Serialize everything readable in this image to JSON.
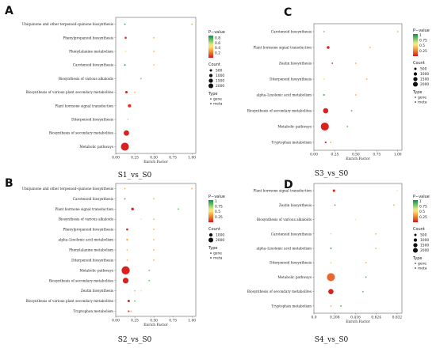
{
  "chart_data": [
    {
      "panel": "A",
      "caption": "S1_vs_S0",
      "type": "scatter",
      "xlabel": "Enrich Factor",
      "xlim": [
        0,
        1.05
      ],
      "xticks": [
        0.0,
        0.25,
        0.5,
        0.75,
        1.0
      ],
      "xtick_labels": [
        "0.00",
        "0.25",
        "0.50",
        "0.75",
        "1.00"
      ],
      "categories": [
        "Ubiquinone and other terpenoid–quinone biosynthesis",
        "Phenylpropanoid biosynthesis",
        "Phenylalanine metabolism",
        "Carotenoid biosynthesis",
        "Biosynthesis of various alkaloids",
        "Biosynthesis of various plant secondary metabolites",
        "Plant hormone signal transduction",
        "Diterpenoid biosynthesis",
        "Biosynthesis of secondary metabolites",
        "Metabolic pathways"
      ],
      "points": [
        {
          "cat": 0,
          "x": 0.12,
          "count": 50,
          "p": 0.85,
          "type": "gene"
        },
        {
          "cat": 0,
          "x": 1.0,
          "count": 30,
          "p": 0.65,
          "type": "meta"
        },
        {
          "cat": 1,
          "x": 0.13,
          "count": 150,
          "p": 0.05,
          "type": "gene"
        },
        {
          "cat": 1,
          "x": 0.5,
          "count": 30,
          "p": 0.35,
          "type": "meta"
        },
        {
          "cat": 2,
          "x": 0.13,
          "count": 60,
          "p": 0.45,
          "type": "gene"
        },
        {
          "cat": 2,
          "x": 0.5,
          "count": 30,
          "p": 0.35,
          "type": "meta"
        },
        {
          "cat": 3,
          "x": 0.12,
          "count": 80,
          "p": 0.85,
          "type": "gene"
        },
        {
          "cat": 3,
          "x": 0.5,
          "count": 30,
          "p": 0.4,
          "type": "meta"
        },
        {
          "cat": 4,
          "x": 0.33,
          "count": 30,
          "p": 0.7,
          "type": "meta"
        },
        {
          "cat": 5,
          "x": 0.14,
          "count": 200,
          "p": 0.05,
          "type": "gene"
        },
        {
          "cat": 5,
          "x": 0.25,
          "count": 30,
          "p": 0.35,
          "type": "meta"
        },
        {
          "cat": 6,
          "x": 0.18,
          "count": 350,
          "p": 0.05,
          "type": "gene"
        },
        {
          "cat": 7,
          "x": 0.16,
          "count": 40,
          "p": 0.4,
          "type": "gene"
        },
        {
          "cat": 8,
          "x": 0.14,
          "count": 950,
          "p": 0.02,
          "type": "gene"
        },
        {
          "cat": 9,
          "x": 0.12,
          "count": 2100,
          "p": 0.02,
          "type": "gene"
        }
      ],
      "pvalue_ticks": [
        0.8,
        0.6,
        0.4,
        0.2
      ],
      "pvalue_range": [
        0.0,
        0.9
      ],
      "count_ticks": [
        500,
        1000,
        1500,
        2000
      ]
    },
    {
      "panel": "B",
      "caption": "S2_vs_S0",
      "type": "scatter",
      "xlabel": "Enrich Factor",
      "xlim": [
        0,
        1.05
      ],
      "xticks": [
        0.0,
        0.25,
        0.5,
        0.75,
        1.0
      ],
      "xtick_labels": [
        "0.00",
        "0.25",
        "0.50",
        "0.75",
        "1.00"
      ],
      "categories": [
        "Ubiquinone and other terpenoid–quinone biosynthesis",
        "Carotenoid biosynthesis",
        "Plant hormone signal transduction",
        "Biosynthesis of various alkaloids",
        "Phenylpropanoid biosynthesis",
        "alpha–Linolenic acid metabolism",
        "Phenylalanine metabolism",
        "Diterpenoid biosynthesis",
        "Metabolic pathways",
        "Biosynthesis of secondary metabolites",
        "Zeatin biosynthesis",
        "Biosynthesis of various plant secondary metabolites",
        "Tryptophan metabolism"
      ],
      "points": [
        {
          "cat": 0,
          "x": 0.12,
          "count": 50,
          "p": 0.4,
          "type": "gene"
        },
        {
          "cat": 0,
          "x": 1.0,
          "count": 30,
          "p": 0.4,
          "type": "meta"
        },
        {
          "cat": 1,
          "x": 0.12,
          "count": 80,
          "p": 0.88,
          "type": "gene"
        },
        {
          "cat": 1,
          "x": 0.5,
          "count": 30,
          "p": 0.4,
          "type": "meta"
        },
        {
          "cat": 2,
          "x": 0.22,
          "count": 250,
          "p": 0.03,
          "type": "gene"
        },
        {
          "cat": 2,
          "x": 0.82,
          "count": 30,
          "p": 0.85,
          "type": "meta"
        },
        {
          "cat": 3,
          "x": 0.33,
          "count": 30,
          "p": 0.6,
          "type": "meta"
        },
        {
          "cat": 3,
          "x": 0.5,
          "count": 30,
          "p": 0.4,
          "type": "meta"
        },
        {
          "cat": 4,
          "x": 0.15,
          "count": 160,
          "p": 0.05,
          "type": "gene"
        },
        {
          "cat": 4,
          "x": 0.5,
          "count": 30,
          "p": 0.4,
          "type": "meta"
        },
        {
          "cat": 5,
          "x": 0.15,
          "count": 120,
          "p": 0.35,
          "type": "gene"
        },
        {
          "cat": 5,
          "x": 0.5,
          "count": 30,
          "p": 0.4,
          "type": "meta"
        },
        {
          "cat": 6,
          "x": 0.15,
          "count": 60,
          "p": 0.4,
          "type": "gene"
        },
        {
          "cat": 6,
          "x": 0.5,
          "count": 30,
          "p": 0.4,
          "type": "meta"
        },
        {
          "cat": 7,
          "x": 0.15,
          "count": 40,
          "p": 0.4,
          "type": "gene"
        },
        {
          "cat": 7,
          "x": 0.5,
          "count": 30,
          "p": 0.4,
          "type": "meta"
        },
        {
          "cat": 8,
          "x": 0.13,
          "count": 2200,
          "p": 0.02,
          "type": "gene"
        },
        {
          "cat": 8,
          "x": 0.44,
          "count": 30,
          "p": 0.85,
          "type": "meta"
        },
        {
          "cat": 9,
          "x": 0.13,
          "count": 1100,
          "p": 0.02,
          "type": "gene"
        },
        {
          "cat": 9,
          "x": 0.44,
          "count": 30,
          "p": 0.85,
          "type": "meta"
        },
        {
          "cat": 10,
          "x": 0.25,
          "count": 40,
          "p": 0.4,
          "type": "gene"
        },
        {
          "cat": 10,
          "x": 0.33,
          "count": 30,
          "p": 0.6,
          "type": "meta"
        },
        {
          "cat": 11,
          "x": 0.17,
          "count": 200,
          "p": 0.05,
          "type": "gene"
        },
        {
          "cat": 11,
          "x": 0.25,
          "count": 30,
          "p": 0.85,
          "type": "meta"
        },
        {
          "cat": 12,
          "x": 0.17,
          "count": 100,
          "p": 0.05,
          "type": "gene"
        },
        {
          "cat": 12,
          "x": 0.2,
          "count": 30,
          "p": 0.4,
          "type": "meta"
        }
      ],
      "pvalue_ticks": [
        1.0,
        0.75,
        0.5,
        0.25
      ],
      "pvalue_range": [
        0.0,
        1.05
      ],
      "count_ticks": [
        1000,
        2000
      ]
    },
    {
      "panel": "C",
      "caption": "S3_vs_S0",
      "type": "scatter",
      "xlabel": "Enrich Factor",
      "xlim": [
        0,
        1.05
      ],
      "xticks": [
        0.0,
        0.25,
        0.5,
        0.75,
        1.0
      ],
      "xtick_labels": [
        "0.00",
        "0.25",
        "0.50",
        "0.75",
        "1.00"
      ],
      "categories": [
        "Carotenoid biosynthesis",
        "Plant hormone signal transduction",
        "Zeatin biosynthesis",
        "Diterpenoid biosynthesis",
        "alpha–Linolenic acid metabolism",
        "Biosynthesis of secondary metabolites",
        "Metabolic pathways",
        "Tryptophan metabolism"
      ],
      "points": [
        {
          "cat": 0,
          "x": 0.12,
          "count": 60,
          "p": 0.85,
          "type": "gene"
        },
        {
          "cat": 0,
          "x": 1.0,
          "count": 30,
          "p": 0.4,
          "type": "meta"
        },
        {
          "cat": 1,
          "x": 0.17,
          "count": 250,
          "p": 0.03,
          "type": "gene"
        },
        {
          "cat": 1,
          "x": 0.67,
          "count": 30,
          "p": 0.4,
          "type": "meta"
        },
        {
          "cat": 2,
          "x": 0.22,
          "count": 60,
          "p": 0.05,
          "type": "gene"
        },
        {
          "cat": 2,
          "x": 0.5,
          "count": 30,
          "p": 0.4,
          "type": "meta"
        },
        {
          "cat": 3,
          "x": 0.12,
          "count": 40,
          "p": 0.5,
          "type": "gene"
        },
        {
          "cat": 3,
          "x": 0.63,
          "count": 30,
          "p": 0.4,
          "type": "meta"
        },
        {
          "cat": 4,
          "x": 0.12,
          "count": 100,
          "p": 0.88,
          "type": "gene"
        },
        {
          "cat": 4,
          "x": 0.5,
          "count": 30,
          "p": 0.4,
          "type": "meta"
        },
        {
          "cat": 5,
          "x": 0.14,
          "count": 900,
          "p": 0.02,
          "type": "gene"
        },
        {
          "cat": 5,
          "x": 0.45,
          "count": 30,
          "p": 0.88,
          "type": "meta"
        },
        {
          "cat": 6,
          "x": 0.13,
          "count": 2100,
          "p": 0.02,
          "type": "gene"
        },
        {
          "cat": 6,
          "x": 0.4,
          "count": 30,
          "p": 0.88,
          "type": "meta"
        },
        {
          "cat": 7,
          "x": 0.14,
          "count": 100,
          "p": 0.03,
          "type": "gene"
        },
        {
          "cat": 7,
          "x": 0.2,
          "count": 30,
          "p": 0.4,
          "type": "meta"
        }
      ],
      "pvalue_ticks": [
        1.0,
        0.75,
        0.5,
        0.25
      ],
      "pvalue_range": [
        0.0,
        1.05
      ],
      "count_ticks": [
        500,
        1000,
        1500,
        2000
      ]
    },
    {
      "panel": "D",
      "caption": "S4_vs_S0",
      "type": "scatter",
      "xlabel": "Enrich Factor",
      "xlim": [
        0,
        0.88
      ],
      "xticks": [
        0.0,
        0.208,
        0.416,
        0.624,
        0.832
      ],
      "xtick_labels": [
        "0.0",
        "0.208",
        "0.416",
        "0.624",
        "0.832"
      ],
      "categories": [
        "Plant hormone signal transduction",
        "Zeatin biosynthesis",
        "Biosynthesis of various alkaloids",
        "Carotenoid biosynthesis",
        "alpha–Linolenic acid metabolism",
        "Diterpenoid biosynthesis",
        "Metabolic pathways",
        "Biosynthesis of secondary metabolites",
        "Tryptophan metabolism"
      ],
      "points": [
        {
          "cat": 0,
          "x": 0.2,
          "count": 200,
          "p": 0.03,
          "type": "gene"
        },
        {
          "cat": 0,
          "x": 0.832,
          "count": 30,
          "p": 0.6,
          "type": "meta"
        },
        {
          "cat": 1,
          "x": 0.21,
          "count": 50,
          "p": 0.88,
          "type": "gene"
        },
        {
          "cat": 1,
          "x": 0.8,
          "count": 30,
          "p": 0.4,
          "type": "meta"
        },
        {
          "cat": 2,
          "x": 0.416,
          "count": 30,
          "p": 0.6,
          "type": "meta"
        },
        {
          "cat": 3,
          "x": 0.17,
          "count": 40,
          "p": 0.5,
          "type": "gene"
        },
        {
          "cat": 3,
          "x": 0.62,
          "count": 30,
          "p": 0.4,
          "type": "meta"
        },
        {
          "cat": 4,
          "x": 0.17,
          "count": 100,
          "p": 0.85,
          "type": "gene"
        },
        {
          "cat": 4,
          "x": 0.62,
          "count": 30,
          "p": 0.4,
          "type": "meta"
        },
        {
          "cat": 5,
          "x": 0.17,
          "count": 40,
          "p": 0.5,
          "type": "gene"
        },
        {
          "cat": 5,
          "x": 0.52,
          "count": 30,
          "p": 0.4,
          "type": "meta"
        },
        {
          "cat": 6,
          "x": 0.17,
          "count": 2100,
          "p": 0.2,
          "type": "gene"
        },
        {
          "cat": 6,
          "x": 0.52,
          "count": 30,
          "p": 0.88,
          "type": "meta"
        },
        {
          "cat": 7,
          "x": 0.17,
          "count": 900,
          "p": 0.02,
          "type": "gene"
        },
        {
          "cat": 7,
          "x": 0.49,
          "count": 30,
          "p": 0.88,
          "type": "meta"
        },
        {
          "cat": 8,
          "x": 0.17,
          "count": 40,
          "p": 0.4,
          "type": "gene"
        },
        {
          "cat": 8,
          "x": 0.27,
          "count": 30,
          "p": 0.88,
          "type": "meta"
        }
      ],
      "pvalue_ticks": [
        1.0,
        0.75,
        0.5,
        0.25
      ],
      "pvalue_range": [
        0.0,
        1.05
      ],
      "count_ticks": [
        500,
        1000,
        1500,
        2000
      ]
    }
  ],
  "legend": {
    "pvalue_title": "P−value",
    "count_title": "Count",
    "type_title": "Type",
    "type_gene": "gene",
    "type_meta": "meta"
  }
}
